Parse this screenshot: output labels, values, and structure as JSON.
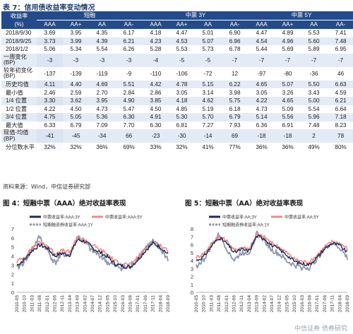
{
  "title": "表 7：信用债收益率变动情况",
  "table": {
    "groups": [
      "收益率",
      "短融",
      "中票 3Y",
      "中票 5Y"
    ],
    "subhead": [
      "(%)",
      "AAA",
      "AA+",
      "AA",
      "AA-",
      "AAA",
      "AA+",
      "AA",
      "AA-",
      "AAA",
      "AA+",
      "AA",
      "AA-"
    ],
    "rows": [
      [
        "2018/9/30",
        "3.69",
        "3.95",
        "4.35",
        "6.17",
        "4.18",
        "4.47",
        "5.01",
        "6.90",
        "4.47",
        "4.89",
        "5.53",
        "7.41"
      ],
      [
        "2018/9/25",
        "3.73",
        "3.99",
        "4.39",
        "6.21",
        "4.23",
        "4.53",
        "5.07",
        "6.96",
        "4.54",
        "4.96",
        "5.60",
        "7.48"
      ],
      [
        "2018/1/2",
        "5.06",
        "5.34",
        "5.54",
        "6.26",
        "5.28",
        "5.53",
        "5.73",
        "6.78",
        "5.44",
        "5.69",
        "5.89",
        "6.95"
      ],
      [
        "一周变化 (BP)",
        "-3",
        "-3",
        "-3",
        "-3",
        "-4",
        "-5",
        "-5",
        "-7",
        "-7",
        "-7",
        "-7",
        "-7"
      ],
      [
        "较年初变化 (BP)",
        "-137",
        "-139",
        "-119",
        "-9",
        "-110",
        "-106",
        "-72",
        "12",
        "-97",
        "-80",
        "-36",
        "46"
      ],
      [
        "历史均值",
        "4.11",
        "4.40",
        "4.69",
        "5.51",
        "4.42",
        "4.78",
        "5.15",
        "6.22",
        "4.65",
        "5.07",
        "5.50",
        "6.63"
      ],
      [
        "最小值",
        "2.46",
        "2.59",
        "2.70",
        "2.84",
        "2.86",
        "3.05",
        "3.14",
        "3.98",
        "3.05",
        "3.26",
        "3.43",
        "4.59"
      ],
      [
        "1/4 位置",
        "3.30",
        "3.62",
        "3.95",
        "4.90",
        "3.85",
        "4.18",
        "4.62",
        "5.75",
        "4.22",
        "4.65",
        "5.00",
        "6.21"
      ],
      [
        "1/2 位置",
        "4.22",
        "4.50",
        "4.73",
        "5.47",
        "4.50",
        "4.85",
        "5.19",
        "6.18",
        "4.73",
        "5.09",
        "5.54",
        "6.64"
      ],
      [
        "3/4 位置",
        "4.75",
        "5.05",
        "5.36",
        "6.30",
        "4.91",
        "5.30",
        "5.70",
        "6.79",
        "5.14",
        "5.56",
        "5.96",
        "7.18"
      ],
      [
        "最大值",
        "6.33",
        "6.79",
        "7.09",
        "7.70",
        "6.30",
        "6.81",
        "7.27",
        "7.93",
        "6.36",
        "6.91",
        "7.48",
        "8.23"
      ],
      [
        "现值-均值 (BP)",
        "-41",
        "-45",
        "-34",
        "66",
        "-23",
        "-30",
        "-14",
        "69",
        "-18",
        "-18",
        "2",
        "78"
      ],
      [
        "分位数水平",
        "32%",
        "32%",
        "36%",
        "69%",
        "33%",
        "32%",
        "41%",
        "77%",
        "36%",
        "36%",
        "49%",
        "80%"
      ]
    ]
  },
  "source": "资料来源：Wind，中信证券研究部",
  "charts": [
    {
      "caption": "图 4：短融中票（AAA）绝对收益率表现",
      "legend": [
        "中票收益率:AAA:3Y",
        "中票收益率:AAA:5Y",
        "短期融资券收益率:AAA:1Y"
      ],
      "colors": {
        "a": "#1c2a5e",
        "b": "#f08a84",
        "c": "#8e96a6"
      },
      "chart_data": {
        "type": "line",
        "ylim": [
          0,
          7
        ],
        "yticks": [
          0,
          1,
          2,
          3,
          4,
          5,
          6,
          7
        ],
        "xlabels": [
          "2010-05",
          "2010-10",
          "2011-03",
          "2011-08",
          "2012-01",
          "2012-06",
          "2012-11",
          "2013-04",
          "2013-09",
          "2014-02",
          "2014-07",
          "2014-12",
          "2015-05",
          "2015-10",
          "2016-03",
          "2016-08",
          "2017-01",
          "2017-06",
          "2017-11",
          "2018-04",
          "2018-09"
        ],
        "series": [
          {
            "name": "中票收益率:AAA:3Y",
            "values": [
              3.0,
              3.6,
              4.6,
              5.2,
              4.9,
              4.0,
              4.3,
              4.1,
              5.8,
              5.6,
              4.9,
              4.4,
              3.9,
              3.1,
              2.9,
              2.8,
              3.6,
              4.6,
              5.4,
              5.0,
              4.2
            ]
          },
          {
            "name": "中票收益率:AAA:5Y",
            "values": [
              3.4,
              3.9,
              4.9,
              5.5,
              5.2,
              4.3,
              4.6,
              4.4,
              6.0,
              5.8,
              5.2,
              4.7,
              4.2,
              3.4,
              3.2,
              3.0,
              3.9,
              4.8,
              5.5,
              5.2,
              4.5
            ]
          },
          {
            "name": "短期融资券收益率:AAA:1Y",
            "values": [
              2.6,
              3.4,
              4.8,
              6.1,
              4.7,
              3.2,
              4.2,
              4.1,
              6.2,
              5.5,
              4.5,
              4.1,
              3.3,
              2.9,
              2.7,
              2.7,
              3.8,
              4.9,
              5.6,
              4.7,
              3.7
            ]
          }
        ]
      }
    },
    {
      "caption": "图 5：短融中票（AA）绝对收益率表现",
      "legend": [
        "中票收益率:AA:3Y",
        "中票收益率:AA:5Y",
        "短期融资券收益率:AA:1Y"
      ],
      "colors": {
        "a": "#1c2a5e",
        "b": "#f08a84",
        "c": "#8e96a6"
      },
      "chart_data": {
        "type": "line",
        "ylim": [
          0,
          8
        ],
        "yticks": [
          0,
          1,
          2,
          3,
          4,
          5,
          6,
          7,
          8
        ],
        "xlabels": [
          "2010-05",
          "2010-10",
          "2011-03",
          "2011-08",
          "2012-01",
          "2012-06",
          "2012-11",
          "2013-04",
          "2013-09",
          "2014-02",
          "2014-07",
          "2014-12",
          "2015-05",
          "2015-10",
          "2016-03",
          "2016-08",
          "2017-01",
          "2017-06",
          "2017-11",
          "2018-04",
          "2018-09"
        ],
        "series": [
          {
            "name": "中票收益率:AA:3Y",
            "values": [
              4.0,
              4.5,
              5.8,
              6.9,
              6.2,
              5.0,
              5.4,
              5.2,
              7.1,
              6.8,
              5.9,
              5.4,
              4.7,
              3.9,
              3.6,
              3.5,
              4.4,
              5.5,
              6.2,
              5.9,
              5.0
            ]
          },
          {
            "name": "中票收益率:AA:5Y",
            "values": [
              4.4,
              4.9,
              6.1,
              7.1,
              6.5,
              5.3,
              5.7,
              5.5,
              7.3,
              7.0,
              6.2,
              5.7,
              5.0,
              4.2,
              3.9,
              3.8,
              4.7,
              5.7,
              6.4,
              6.2,
              5.5
            ]
          },
          {
            "name": "短期融资券收益率:AA:1Y",
            "values": [
              3.3,
              4.1,
              5.8,
              7.3,
              5.6,
              4.0,
              5.0,
              5.0,
              7.4,
              6.6,
              5.3,
              4.8,
              3.9,
              3.4,
              3.1,
              3.1,
              4.3,
              5.6,
              6.2,
              5.6,
              4.3
            ]
          }
        ]
      }
    }
  ],
  "watermark": "中信证券 债券研究"
}
